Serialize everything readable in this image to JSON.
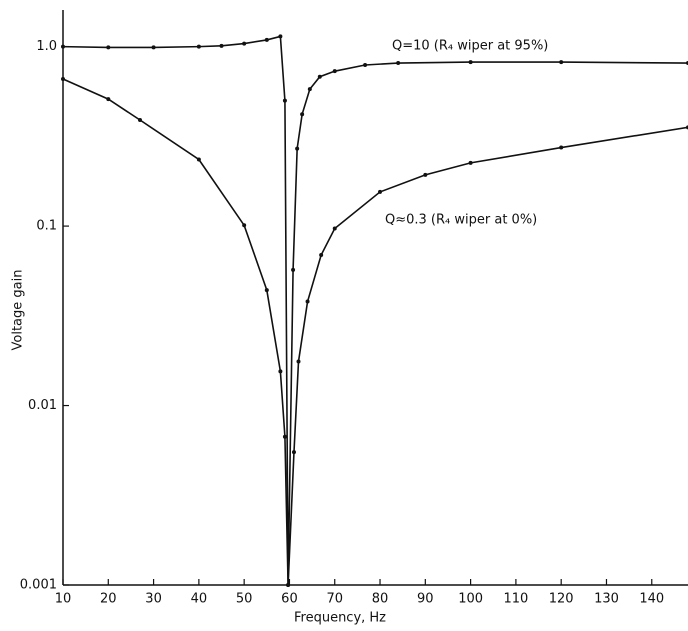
{
  "chart_data": {
    "type": "line",
    "x_label": "Frequency, Hz",
    "y_label": "Voltage gain",
    "log_y": true,
    "color": "#111111",
    "xlim": [
      10,
      148
    ],
    "ylim": [
      0.001,
      1.6
    ],
    "xticks": [
      10,
      20,
      30,
      40,
      50,
      60,
      70,
      80,
      90,
      100,
      110,
      120,
      130,
      140
    ],
    "yticks": [
      0.001,
      0.01,
      0.1,
      {
        "value": 1,
        "label": "1.0"
      }
    ],
    "series": [
      {
        "name": "Q=10 (R₄ wiper at 95%)",
        "color": "#111111",
        "x": [
          10,
          20,
          30,
          40,
          45,
          50,
          55,
          58,
          59,
          59.7,
          60.8,
          61.7,
          62.8,
          64.5,
          66.7,
          70,
          76.7,
          84,
          100,
          120,
          148
        ],
        "values": [
          1.0,
          0.99,
          0.99,
          1.0,
          1.01,
          1.04,
          1.09,
          1.14,
          0.5,
          0.001,
          0.057,
          0.27,
          0.42,
          0.58,
          0.68,
          0.73,
          0.79,
          0.81,
          0.82,
          0.82,
          0.81
        ]
      },
      {
        "name": "Q≈0.3 (R₄ wiper at 0%)",
        "color": "#111111",
        "x": [
          10,
          20,
          27,
          40,
          50,
          55,
          58,
          59,
          59.7,
          61,
          62,
          64,
          67,
          70,
          80,
          90,
          100,
          120,
          148
        ],
        "values": [
          0.66,
          0.51,
          0.39,
          0.235,
          0.101,
          0.044,
          0.0155,
          0.0067,
          0.001,
          0.0055,
          0.0176,
          0.038,
          0.069,
          0.097,
          0.155,
          0.193,
          0.225,
          0.274,
          0.355
        ]
      }
    ]
  }
}
